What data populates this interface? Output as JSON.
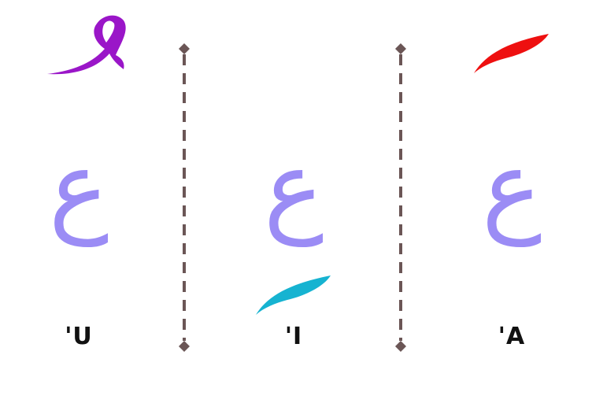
{
  "letters": {
    "left": "ع",
    "middle": "ع",
    "right": "ع"
  },
  "labels": {
    "left": "'U",
    "middle": "'I",
    "right": "'A"
  },
  "marks": {
    "left": "damma-mark",
    "middle": "kasra-mark",
    "right": "fatha-mark"
  },
  "colors": {
    "letter": "#9b8cf5",
    "damma": "#9a16c8",
    "kasra": "#16b3d1",
    "fatha": "#ee1010",
    "divider": "#6b5656",
    "label": "#111111"
  }
}
